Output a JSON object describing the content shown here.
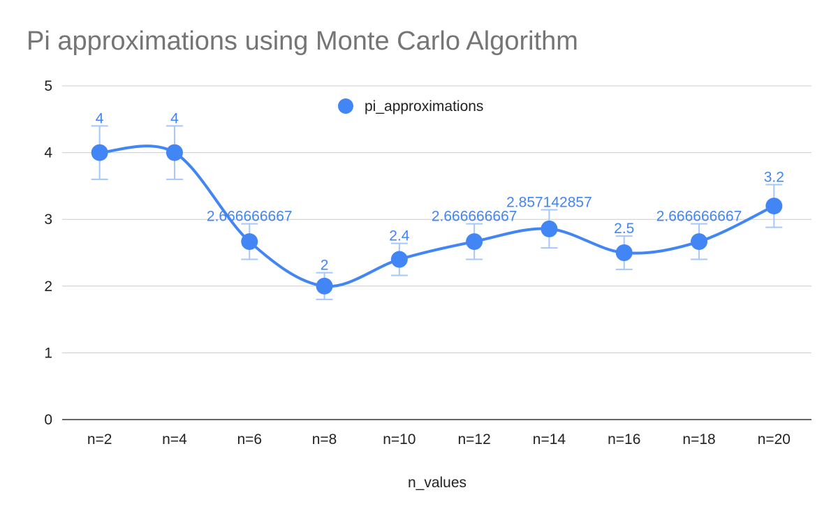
{
  "chart_data": {
    "type": "line",
    "title": "Pi approximations using Monte Carlo Algorithm",
    "xlabel": "n_values",
    "ylabel": "",
    "categories": [
      "n=2",
      "n=4",
      "n=6",
      "n=8",
      "n=10",
      "n=12",
      "n=14",
      "n=16",
      "n=18",
      "n=20"
    ],
    "series": [
      {
        "name": "pi_approximations",
        "values": [
          4,
          4,
          2.666666667,
          2,
          2.4,
          2.666666667,
          2.857142857,
          2.5,
          2.666666667,
          3.2
        ],
        "data_labels": [
          "4",
          "4",
          "2.666666667",
          "2",
          "2.4",
          "2.666666667",
          "2.857142857",
          "2.5",
          "2.666666667",
          "3.2"
        ],
        "error_percent": 10,
        "color": "#4285f4",
        "smooth": true
      }
    ],
    "ylim": [
      0,
      5
    ],
    "yticks": [
      0,
      1,
      2,
      3,
      4,
      5
    ],
    "grid": true,
    "legend_position": "top"
  },
  "colors": {
    "series": "#4285f4",
    "error_bar": "#a6c7f9",
    "gridline": "#cccccc",
    "axis": "#333333",
    "title": "#757575"
  }
}
